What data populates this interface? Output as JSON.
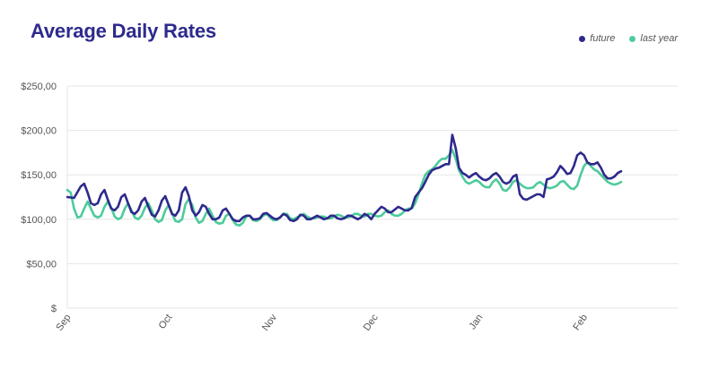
{
  "title": "Average Daily Rates",
  "legend": [
    {
      "name": "future",
      "color": "#2e2a8c"
    },
    {
      "name": "last year",
      "color": "#4ecb9b"
    }
  ],
  "chart_data": {
    "type": "line",
    "title": "Average Daily Rates",
    "xlabel": "",
    "ylabel": "",
    "ylim": [
      0,
      250
    ],
    "yticks": [
      0,
      50,
      100,
      150,
      200,
      250
    ],
    "ytick_labels": [
      "$",
      "$50,00",
      "$100,00",
      "$150,00",
      "$200,00",
      "$250,00"
    ],
    "xtick_labels": [
      "Sep",
      "Oct",
      "Nov",
      "Dec",
      "Jan",
      "Feb"
    ],
    "xtick_positions": [
      0,
      30,
      61,
      91,
      122,
      153
    ],
    "xlim": [
      0,
      181
    ],
    "grid": true,
    "legend_position": "top-right",
    "series": [
      {
        "name": "future",
        "color": "#2e2a8c",
        "points": [
          [
            0,
            125
          ],
          [
            2,
            124
          ],
          [
            4,
            137
          ],
          [
            5,
            140
          ],
          [
            6,
            130
          ],
          [
            7,
            118
          ],
          [
            8,
            116
          ],
          [
            9,
            118
          ],
          [
            10,
            128
          ],
          [
            11,
            133
          ],
          [
            12,
            122
          ],
          [
            13,
            112
          ],
          [
            14,
            110
          ],
          [
            15,
            114
          ],
          [
            16,
            125
          ],
          [
            17,
            128
          ],
          [
            18,
            118
          ],
          [
            19,
            108
          ],
          [
            20,
            106
          ],
          [
            21,
            110
          ],
          [
            22,
            120
          ],
          [
            23,
            124
          ],
          [
            24,
            114
          ],
          [
            25,
            105
          ],
          [
            26,
            103
          ],
          [
            27,
            110
          ],
          [
            28,
            121
          ],
          [
            29,
            126
          ],
          [
            30,
            116
          ],
          [
            31,
            106
          ],
          [
            32,
            104
          ],
          [
            33,
            110
          ],
          [
            34,
            130
          ],
          [
            35,
            136
          ],
          [
            36,
            126
          ],
          [
            37,
            110
          ],
          [
            38,
            104
          ],
          [
            39,
            108
          ],
          [
            40,
            116
          ],
          [
            41,
            114
          ],
          [
            42,
            106
          ],
          [
            43,
            100
          ],
          [
            44,
            100
          ],
          [
            45,
            102
          ],
          [
            46,
            110
          ],
          [
            47,
            112
          ],
          [
            48,
            106
          ],
          [
            49,
            100
          ],
          [
            50,
            98
          ],
          [
            51,
            98
          ],
          [
            52,
            102
          ],
          [
            53,
            104
          ],
          [
            54,
            104
          ],
          [
            55,
            100
          ],
          [
            56,
            100
          ],
          [
            57,
            101
          ],
          [
            58,
            106
          ],
          [
            59,
            107
          ],
          [
            60,
            104
          ],
          [
            61,
            101
          ],
          [
            62,
            100
          ],
          [
            63,
            102
          ],
          [
            64,
            106
          ],
          [
            65,
            104
          ],
          [
            66,
            99
          ],
          [
            67,
            98
          ],
          [
            68,
            100
          ],
          [
            69,
            105
          ],
          [
            70,
            104
          ],
          [
            71,
            100
          ],
          [
            72,
            100
          ],
          [
            73,
            102
          ],
          [
            74,
            104
          ],
          [
            75,
            102
          ],
          [
            76,
            100
          ],
          [
            77,
            101
          ],
          [
            78,
            104
          ],
          [
            79,
            104
          ],
          [
            80,
            101
          ],
          [
            81,
            100
          ],
          [
            82,
            101
          ],
          [
            83,
            104
          ],
          [
            84,
            104
          ],
          [
            85,
            102
          ],
          [
            86,
            100
          ],
          [
            87,
            102
          ],
          [
            88,
            106
          ],
          [
            89,
            104
          ],
          [
            90,
            100
          ],
          [
            91,
            106
          ],
          [
            92,
            110
          ],
          [
            93,
            114
          ],
          [
            94,
            112
          ],
          [
            95,
            108
          ],
          [
            96,
            108
          ],
          [
            97,
            111
          ],
          [
            98,
            114
          ],
          [
            99,
            112
          ],
          [
            100,
            110
          ],
          [
            101,
            110
          ],
          [
            102,
            113
          ],
          [
            103,
            125
          ],
          [
            104,
            130
          ],
          [
            105,
            135
          ],
          [
            106,
            142
          ],
          [
            107,
            150
          ],
          [
            108,
            155
          ],
          [
            109,
            157
          ],
          [
            110,
            158
          ],
          [
            111,
            160
          ],
          [
            112,
            162
          ],
          [
            113,
            162
          ],
          [
            114,
            195
          ],
          [
            115,
            180
          ],
          [
            116,
            158
          ],
          [
            117,
            152
          ],
          [
            118,
            150
          ],
          [
            119,
            147
          ],
          [
            120,
            150
          ],
          [
            121,
            152
          ],
          [
            122,
            148
          ],
          [
            123,
            145
          ],
          [
            124,
            144
          ],
          [
            125,
            146
          ],
          [
            126,
            150
          ],
          [
            127,
            152
          ],
          [
            128,
            148
          ],
          [
            129,
            142
          ],
          [
            130,
            140
          ],
          [
            131,
            142
          ],
          [
            132,
            148
          ],
          [
            133,
            150
          ],
          [
            134,
            128
          ],
          [
            135,
            123
          ],
          [
            136,
            122
          ],
          [
            137,
            124
          ],
          [
            138,
            126
          ],
          [
            139,
            128
          ],
          [
            140,
            128
          ],
          [
            141,
            125
          ],
          [
            142,
            145
          ],
          [
            143,
            146
          ],
          [
            144,
            148
          ],
          [
            145,
            153
          ],
          [
            146,
            160
          ],
          [
            147,
            156
          ],
          [
            148,
            151
          ],
          [
            149,
            152
          ],
          [
            150,
            160
          ],
          [
            151,
            172
          ],
          [
            152,
            175
          ],
          [
            153,
            172
          ],
          [
            154,
            164
          ],
          [
            155,
            162
          ],
          [
            156,
            162
          ],
          [
            157,
            164
          ],
          [
            158,
            158
          ],
          [
            159,
            150
          ],
          [
            160,
            146
          ],
          [
            161,
            146
          ],
          [
            162,
            148
          ],
          [
            163,
            152
          ],
          [
            164,
            154
          ]
        ]
      },
      {
        "name": "last year",
        "color": "#4ecb9b",
        "points": [
          [
            0,
            133
          ],
          [
            1,
            130
          ],
          [
            2,
            112
          ],
          [
            3,
            102
          ],
          [
            4,
            103
          ],
          [
            5,
            112
          ],
          [
            6,
            120
          ],
          [
            7,
            112
          ],
          [
            8,
            104
          ],
          [
            9,
            102
          ],
          [
            10,
            104
          ],
          [
            11,
            114
          ],
          [
            12,
            120
          ],
          [
            13,
            113
          ],
          [
            14,
            103
          ],
          [
            15,
            100
          ],
          [
            16,
            102
          ],
          [
            17,
            112
          ],
          [
            18,
            118
          ],
          [
            19,
            110
          ],
          [
            20,
            102
          ],
          [
            21,
            100
          ],
          [
            22,
            104
          ],
          [
            23,
            113
          ],
          [
            24,
            118
          ],
          [
            25,
            110
          ],
          [
            26,
            100
          ],
          [
            27,
            97
          ],
          [
            28,
            99
          ],
          [
            29,
            110
          ],
          [
            30,
            116
          ],
          [
            31,
            107
          ],
          [
            32,
            98
          ],
          [
            33,
            97
          ],
          [
            34,
            100
          ],
          [
            35,
            117
          ],
          [
            36,
            123
          ],
          [
            37,
            116
          ],
          [
            38,
            102
          ],
          [
            39,
            96
          ],
          [
            40,
            98
          ],
          [
            41,
            106
          ],
          [
            42,
            112
          ],
          [
            43,
            104
          ],
          [
            44,
            97
          ],
          [
            45,
            95
          ],
          [
            46,
            96
          ],
          [
            47,
            104
          ],
          [
            48,
            106
          ],
          [
            49,
            99
          ],
          [
            50,
            94
          ],
          [
            51,
            93
          ],
          [
            52,
            96
          ],
          [
            53,
            103
          ],
          [
            54,
            104
          ],
          [
            55,
            99
          ],
          [
            56,
            98
          ],
          [
            57,
            100
          ],
          [
            58,
            104
          ],
          [
            59,
            106
          ],
          [
            60,
            102
          ],
          [
            61,
            99
          ],
          [
            62,
            99
          ],
          [
            63,
            102
          ],
          [
            64,
            106
          ],
          [
            65,
            106
          ],
          [
            66,
            101
          ],
          [
            67,
            100
          ],
          [
            68,
            102
          ],
          [
            69,
            104
          ],
          [
            70,
            106
          ],
          [
            71,
            103
          ],
          [
            72,
            101
          ],
          [
            73,
            101
          ],
          [
            74,
            102
          ],
          [
            75,
            103
          ],
          [
            76,
            103
          ],
          [
            77,
            101
          ],
          [
            78,
            101
          ],
          [
            79,
            103
          ],
          [
            80,
            105
          ],
          [
            81,
            104
          ],
          [
            82,
            102
          ],
          [
            83,
            102
          ],
          [
            84,
            103
          ],
          [
            85,
            106
          ],
          [
            86,
            106
          ],
          [
            87,
            104
          ],
          [
            88,
            103
          ],
          [
            89,
            106
          ],
          [
            90,
            106
          ],
          [
            91,
            104
          ],
          [
            92,
            103
          ],
          [
            93,
            104
          ],
          [
            94,
            108
          ],
          [
            95,
            110
          ],
          [
            96,
            106
          ],
          [
            97,
            104
          ],
          [
            98,
            104
          ],
          [
            99,
            106
          ],
          [
            100,
            110
          ],
          [
            101,
            112
          ],
          [
            102,
            112
          ],
          [
            103,
            118
          ],
          [
            104,
            128
          ],
          [
            105,
            140
          ],
          [
            106,
            150
          ],
          [
            107,
            154
          ],
          [
            108,
            156
          ],
          [
            109,
            160
          ],
          [
            110,
            165
          ],
          [
            111,
            168
          ],
          [
            112,
            168
          ],
          [
            113,
            172
          ],
          [
            114,
            178
          ],
          [
            115,
            168
          ],
          [
            116,
            155
          ],
          [
            117,
            148
          ],
          [
            118,
            142
          ],
          [
            119,
            140
          ],
          [
            120,
            142
          ],
          [
            121,
            144
          ],
          [
            122,
            142
          ],
          [
            123,
            138
          ],
          [
            124,
            136
          ],
          [
            125,
            136
          ],
          [
            126,
            142
          ],
          [
            127,
            145
          ],
          [
            128,
            140
          ],
          [
            129,
            133
          ],
          [
            130,
            132
          ],
          [
            131,
            136
          ],
          [
            132,
            142
          ],
          [
            133,
            144
          ],
          [
            134,
            140
          ],
          [
            135,
            137
          ],
          [
            136,
            135
          ],
          [
            137,
            135
          ],
          [
            138,
            136
          ],
          [
            139,
            140
          ],
          [
            140,
            142
          ],
          [
            141,
            139
          ],
          [
            142,
            136
          ],
          [
            143,
            135
          ],
          [
            144,
            136
          ],
          [
            145,
            138
          ],
          [
            146,
            142
          ],
          [
            147,
            143
          ],
          [
            148,
            139
          ],
          [
            149,
            135
          ],
          [
            150,
            134
          ],
          [
            151,
            138
          ],
          [
            152,
            150
          ],
          [
            153,
            160
          ],
          [
            154,
            164
          ],
          [
            155,
            160
          ],
          [
            156,
            156
          ],
          [
            157,
            154
          ],
          [
            158,
            150
          ],
          [
            159,
            146
          ],
          [
            160,
            142
          ],
          [
            161,
            140
          ],
          [
            162,
            139
          ],
          [
            163,
            140
          ],
          [
            164,
            142
          ]
        ]
      }
    ]
  }
}
